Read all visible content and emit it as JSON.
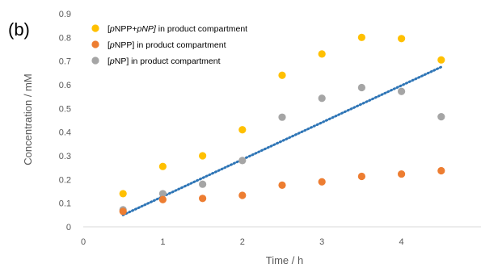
{
  "panel_label": "(b)",
  "chart_data": {
    "type": "scatter",
    "xlabel": "Time / h",
    "ylabel": "Concentration / mM",
    "xlim": [
      0,
      5
    ],
    "ylim": [
      0,
      0.9
    ],
    "xticks": [
      0,
      1,
      2,
      3,
      4
    ],
    "yticks": [
      0,
      0.1,
      0.2,
      0.3,
      0.4,
      0.5,
      0.6,
      0.7,
      0.8,
      0.9
    ],
    "grid": false,
    "legend_position": "top-left",
    "series": [
      {
        "name": "[pNPP+pNP] in product compartment",
        "legend_parts": [
          {
            "text": "[",
            "italic": false
          },
          {
            "text": "p",
            "italic": true
          },
          {
            "text": "NPP+",
            "italic": false
          },
          {
            "text": "p",
            "italic": true
          },
          {
            "text": "NP]",
            "italic": true
          },
          {
            "text": " in product compartment",
            "italic": false
          }
        ],
        "color": "#FFC000",
        "points": [
          {
            "x": 0.5,
            "y": 0.14
          },
          {
            "x": 1.0,
            "y": 0.255
          },
          {
            "x": 1.5,
            "y": 0.3
          },
          {
            "x": 2.0,
            "y": 0.41
          },
          {
            "x": 2.5,
            "y": 0.64
          },
          {
            "x": 3.0,
            "y": 0.73
          },
          {
            "x": 3.5,
            "y": 0.8
          },
          {
            "x": 4.0,
            "y": 0.795
          },
          {
            "x": 4.5,
            "y": 0.705
          }
        ]
      },
      {
        "name": "[pNPP] in product compartment",
        "legend_parts": [
          {
            "text": "[",
            "italic": false
          },
          {
            "text": "p",
            "italic": true
          },
          {
            "text": "NPP] in product compartment",
            "italic": false
          }
        ],
        "color": "#ED7D31",
        "points": [
          {
            "x": 0.5,
            "y": 0.065
          },
          {
            "x": 1.0,
            "y": 0.115
          },
          {
            "x": 1.5,
            "y": 0.12
          },
          {
            "x": 2.0,
            "y": 0.133
          },
          {
            "x": 2.5,
            "y": 0.176
          },
          {
            "x": 3.0,
            "y": 0.19
          },
          {
            "x": 3.5,
            "y": 0.213
          },
          {
            "x": 4.0,
            "y": 0.223
          },
          {
            "x": 4.5,
            "y": 0.237
          }
        ]
      },
      {
        "name": "[pNP] in product compartment",
        "legend_parts": [
          {
            "text": "[",
            "italic": false
          },
          {
            "text": "p",
            "italic": true
          },
          {
            "text": "NP] in product compartment",
            "italic": false
          }
        ],
        "color": "#A5A5A5",
        "points": [
          {
            "x": 0.5,
            "y": 0.072
          },
          {
            "x": 1.0,
            "y": 0.14
          },
          {
            "x": 1.5,
            "y": 0.18
          },
          {
            "x": 2.0,
            "y": 0.28
          },
          {
            "x": 2.5,
            "y": 0.463
          },
          {
            "x": 3.0,
            "y": 0.543
          },
          {
            "x": 3.5,
            "y": 0.588
          },
          {
            "x": 4.0,
            "y": 0.572
          },
          {
            "x": 4.5,
            "y": 0.465
          }
        ]
      }
    ],
    "trendline": {
      "style": "dotted",
      "color": "#2E75B6",
      "points": [
        {
          "x": 0.5,
          "y": 0.05
        },
        {
          "x": 4.5,
          "y": 0.675
        }
      ]
    }
  }
}
